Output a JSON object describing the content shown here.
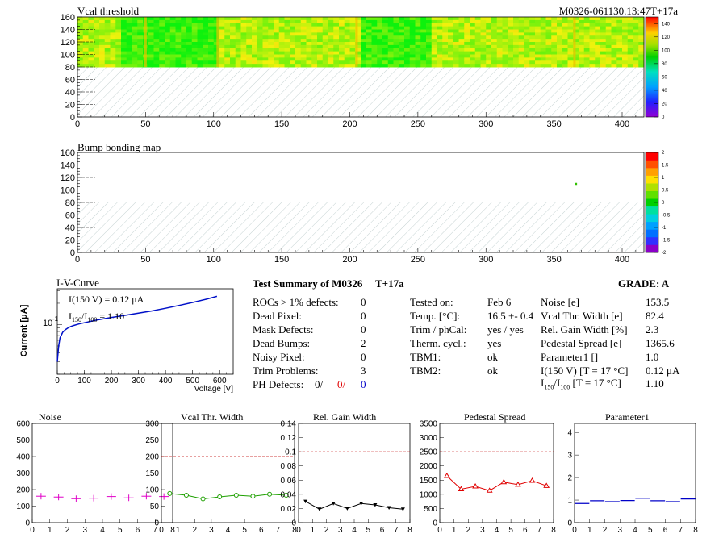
{
  "header": {
    "map1_title": "Vcal threshold",
    "module_id": "M0326-061130.13:47T+17a",
    "map2_title": "Bump bonding map"
  },
  "maps": {
    "x_ticks": [
      "0",
      "50",
      "100",
      "150",
      "200",
      "250",
      "300",
      "350",
      "400"
    ],
    "y_ticks": [
      "0",
      "20",
      "40",
      "60",
      "80",
      "100",
      "120",
      "140",
      "160"
    ],
    "vcal_palette_ticks": [
      "0",
      "20",
      "40",
      "60",
      "80",
      "100",
      "120",
      "140"
    ],
    "bump_palette_ticks": [
      "-2",
      "-1.5",
      "-1",
      "-0.5",
      "0",
      "0.5",
      "1",
      "1.5",
      "2"
    ]
  },
  "iv": {
    "title": "I-V-Curve",
    "ylabel": "Current [μA]",
    "xlabel": "Voltage [V]",
    "ytick": "10",
    "ytick_exp": "-1",
    "xticks": [
      "0",
      "100",
      "200",
      "300",
      "400",
      "500",
      "600"
    ],
    "annotation1": "I(150 V) = 0.12 μA",
    "annotation2_a": "I",
    "annotation2_b": "150",
    "annotation2_c": "/I",
    "annotation2_d": "100",
    "annotation2_e": " = 1.10"
  },
  "summary": {
    "title": "Test Summary of M0326",
    "tag": "T+17a",
    "grade": "GRADE:  A",
    "left": [
      {
        "label": "ROCs > 1% defects:",
        "value": "0"
      },
      {
        "label": "Dead Pixel:",
        "value": "0"
      },
      {
        "label": "Mask Defects:",
        "value": "0"
      },
      {
        "label": "Dead Bumps:",
        "value": "2"
      },
      {
        "label": "Noisy Pixel:",
        "value": "0"
      },
      {
        "label": "Trim Problems:",
        "value": "3"
      }
    ],
    "ph_label": "PH Defects:",
    "ph_values": [
      "0/",
      "0/",
      "0"
    ],
    "middle": [
      {
        "label": "Tested on:",
        "value": "Feb 6"
      },
      {
        "label": "Temp. [°C]:",
        "value": "16.5 +- 0.4"
      },
      {
        "label": "Trim / phCal:",
        "value": "yes / yes"
      },
      {
        "label": "Therm. cycl.:",
        "value": "yes"
      },
      {
        "label": "TBM1:",
        "value": "ok"
      },
      {
        "label": "TBM2:",
        "value": "ok"
      }
    ],
    "right": [
      {
        "label": "Noise [e]",
        "value": "153.5"
      },
      {
        "label": "Vcal Thr. Width [e]",
        "value": "82.4"
      },
      {
        "label": "Rel. Gain Width [%]",
        "value": "2.3"
      },
      {
        "label": "Pedestal Spread [e]",
        "value": "1365.6"
      },
      {
        "label": "Parameter1 []",
        "value": "1.0"
      },
      {
        "label": "I(150 V) [T = 17 °C]",
        "value": "0.12 μA"
      }
    ],
    "ratio_label_a": "I",
    "ratio_label_b": "150",
    "ratio_label_c": "/I",
    "ratio_label_d": "100",
    "ratio_label_e": " [T = 17 °C]",
    "ratio_value": "1.10"
  },
  "colors": {
    "noise": "#e000c8",
    "vcal": "#1ea000",
    "gain": "#000000",
    "pedestal": "#e00000",
    "param1": "#0000c8",
    "ref_line": "#c00000",
    "iv_curve": "#0010c8"
  },
  "chart_data": [
    {
      "type": "heatmap",
      "title": "Vcal threshold",
      "xlim": [
        0,
        416
      ],
      "ylim": [
        0,
        160
      ],
      "z_range": [
        0,
        150
      ],
      "filled_rows": [
        80,
        160
      ],
      "typical_value": 105
    },
    {
      "type": "heatmap",
      "title": "Bump bonding map",
      "xlim": [
        0,
        416
      ],
      "ylim": [
        0,
        160
      ],
      "z_range": [
        -2,
        2
      ],
      "points": [
        {
          "x": 366,
          "y": 110,
          "z": 0.2
        }
      ]
    },
    {
      "type": "line",
      "title": "I-V-Curve",
      "xlabel": "Voltage [V]",
      "ylabel": "Current [μA]",
      "xlim": [
        0,
        650
      ],
      "y_scale": "log",
      "x": [
        0,
        5,
        10,
        20,
        30,
        40,
        50,
        60,
        80,
        100,
        150,
        200,
        250,
        300,
        350,
        400,
        450,
        500,
        550,
        590
      ],
      "y": [
        0.03,
        0.05,
        0.065,
        0.078,
        0.085,
        0.09,
        0.094,
        0.097,
        0.102,
        0.106,
        0.117,
        0.126,
        0.135,
        0.145,
        0.156,
        0.17,
        0.186,
        0.205,
        0.228,
        0.25
      ]
    },
    {
      "type": "scatter",
      "title": "Noise",
      "xlim": [
        0,
        8
      ],
      "ylim": [
        0,
        600
      ],
      "yticks": [
        "0",
        "100",
        "200",
        "300",
        "400",
        "500",
        "600"
      ],
      "xticks": [
        "0",
        "1",
        "2",
        "3",
        "4",
        "5",
        "6",
        "7",
        "8"
      ],
      "ref": 500,
      "x": [
        0.5,
        1.5,
        2.5,
        3.5,
        4.5,
        5.5,
        6.5,
        7.5
      ],
      "y": [
        160,
        155,
        145,
        148,
        158,
        150,
        160,
        158
      ]
    },
    {
      "type": "scatter",
      "title": "Vcal Thr. Width",
      "xlim": [
        0,
        8
      ],
      "ylim": [
        0,
        300
      ],
      "yticks": [
        "0",
        "50",
        "100",
        "150",
        "200",
        "250",
        "300"
      ],
      "xticks": [
        "0",
        "1",
        "2",
        "3",
        "4",
        "5",
        "6",
        "7",
        "8"
      ],
      "ref": 200,
      "x": [
        0.5,
        1.5,
        2.5,
        3.5,
        4.5,
        5.5,
        6.5,
        7.5
      ],
      "y": [
        88,
        83,
        72,
        78,
        83,
        80,
        86,
        83
      ]
    },
    {
      "type": "scatter",
      "title": "Rel. Gain Width",
      "xlim": [
        0,
        8
      ],
      "ylim": [
        0,
        0.14
      ],
      "yticks": [
        "0",
        "0.02",
        "0.04",
        "0.06",
        "0.08",
        "0.1",
        "0.12",
        "0.14"
      ],
      "xticks": [
        "0",
        "1",
        "2",
        "3",
        "4",
        "5",
        "6",
        "7",
        "8"
      ],
      "ref": 0.1,
      "x": [
        0.5,
        1.5,
        2.5,
        3.5,
        4.5,
        5.5,
        6.5,
        7.5
      ],
      "y": [
        0.03,
        0.019,
        0.027,
        0.02,
        0.027,
        0.025,
        0.021,
        0.019
      ]
    },
    {
      "type": "scatter",
      "title": "Pedestal Spread",
      "xlim": [
        0,
        8
      ],
      "ylim": [
        0,
        3500
      ],
      "yticks": [
        "0",
        "500",
        "1000",
        "1500",
        "2000",
        "2500",
        "3000",
        "3500"
      ],
      "xticks": [
        "0",
        "1",
        "2",
        "3",
        "4",
        "5",
        "6",
        "7",
        "8"
      ],
      "ref": 2500,
      "x": [
        0.5,
        1.5,
        2.5,
        3.5,
        4.5,
        5.5,
        6.5,
        7.5
      ],
      "y": [
        1650,
        1180,
        1280,
        1130,
        1430,
        1340,
        1480,
        1300
      ]
    },
    {
      "type": "scatter",
      "title": "Parameter1",
      "xlim": [
        0,
        8
      ],
      "ylim": [
        0,
        4.4
      ],
      "yticks": [
        "0",
        "1",
        "2",
        "3",
        "4"
      ],
      "xticks": [
        "0",
        "1",
        "2",
        "3",
        "4",
        "5",
        "6",
        "7",
        "8"
      ],
      "ref": null,
      "x": [
        0.5,
        1.5,
        2.5,
        3.5,
        4.5,
        5.5,
        6.5,
        7.5
      ],
      "y": [
        0.85,
        0.97,
        0.93,
        0.98,
        1.08,
        0.97,
        0.93,
        1.05
      ]
    }
  ]
}
